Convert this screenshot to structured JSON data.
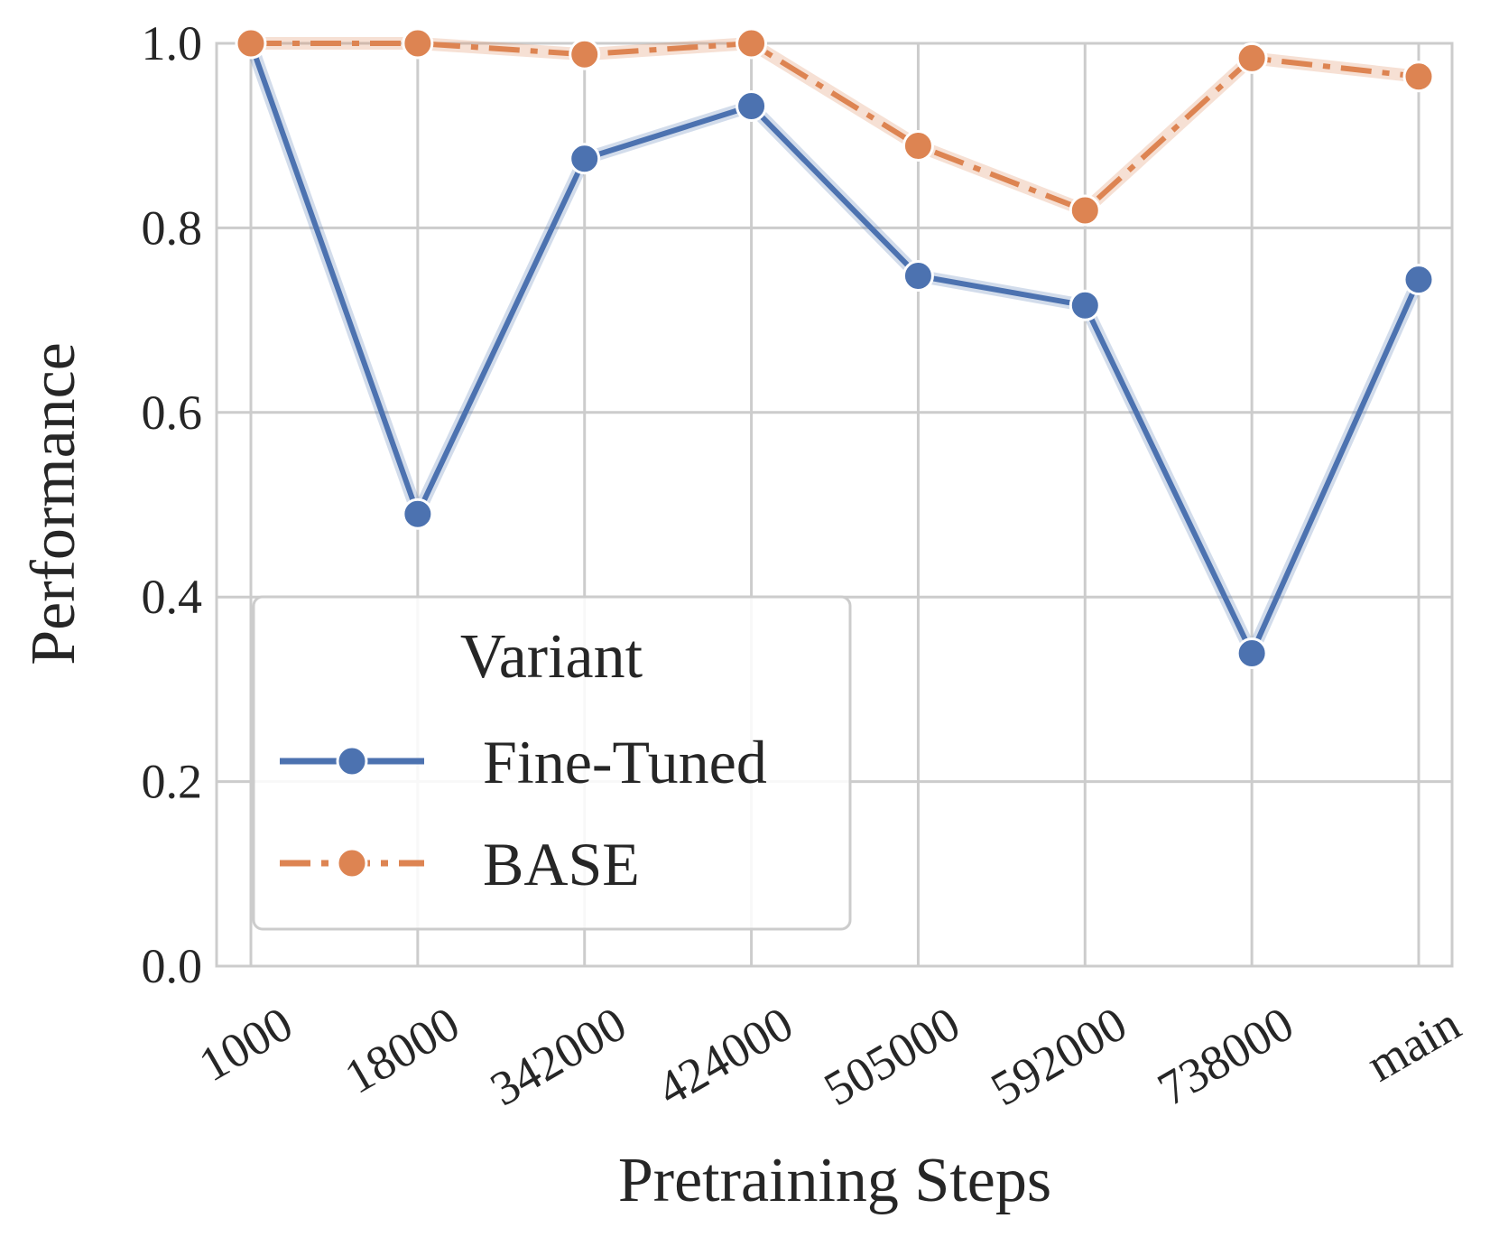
{
  "chart_data": {
    "type": "line",
    "title": "",
    "xlabel": "Pretraining Steps",
    "ylabel": "Performance",
    "categories": [
      "1000",
      "18000",
      "342000",
      "424000",
      "505000",
      "592000",
      "738000",
      "main"
    ],
    "ylim": [
      0.0,
      1.0
    ],
    "yticks": [
      "0.0",
      "0.2",
      "0.4",
      "0.6",
      "0.8",
      "1.0"
    ],
    "grid": true,
    "legend": {
      "title": "Variant",
      "placement": "lower-left"
    },
    "series": [
      {
        "name": "Fine-Tuned",
        "values": [
          1.0,
          0.49,
          0.875,
          0.932,
          0.748,
          0.716,
          0.339,
          0.744
        ],
        "color": "#4c72b0",
        "linestyle": "solid",
        "marker": "circle"
      },
      {
        "name": "BASE",
        "values": [
          1.0,
          1.0,
          0.988,
          1.0,
          0.889,
          0.819,
          0.984,
          0.964
        ],
        "color": "#dd8452",
        "linestyle": "dashdot",
        "marker": "circle"
      }
    ]
  }
}
